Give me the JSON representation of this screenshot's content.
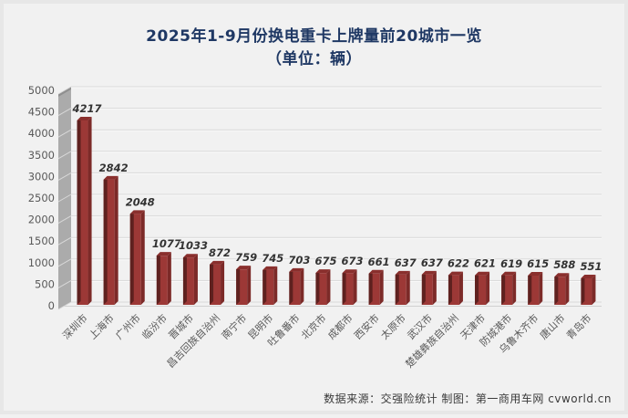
{
  "title": {
    "line1": "2025年1-9月份换电重卡上牌量前20城市一览",
    "line2": "（单位：辆）"
  },
  "footer": {
    "source": "数据来源：交强险统计  制图：第一商用车网 cvworld.cn"
  },
  "chart_data": {
    "type": "bar",
    "style": "3d-column",
    "title": "2025年1-9月份换电重卡上牌量前20城市一览",
    "subtitle": "（单位：辆）",
    "categories": [
      "深圳市",
      "上海市",
      "广州市",
      "临汾市",
      "晋城市",
      "昌吉回族自治州",
      "南宁市",
      "昆明市",
      "吐鲁番市",
      "北京市",
      "成都市",
      "西安市",
      "太原市",
      "武汉市",
      "楚雄彝族自治州",
      "天津市",
      "防城港市",
      "乌鲁木齐市",
      "唐山市",
      "青岛市"
    ],
    "values": [
      4217,
      2842,
      2048,
      1077,
      1033,
      872,
      759,
      745,
      703,
      675,
      673,
      661,
      637,
      637,
      622,
      621,
      619,
      615,
      588,
      551
    ],
    "xlabel": "",
    "ylabel": "",
    "ylim": [
      0,
      5000
    ],
    "ytick_step": 500,
    "grid": true,
    "legend": false,
    "data_labels": true,
    "colors": {
      "bar_front": "#9c3836",
      "bar_side_dark": "#5e211f",
      "bar_side_right": "#7c2a28",
      "bar_top": "#8a2f2d",
      "wall": "#ababab",
      "wall_hatch": "#d8d8d8",
      "gridline": "#d9d9d9",
      "gridline_highlight": "#fbfbfb",
      "axis_text": "#595959",
      "data_label_text": "#333333",
      "title_text": "#1f3864",
      "background": "#f1f1f1"
    }
  }
}
